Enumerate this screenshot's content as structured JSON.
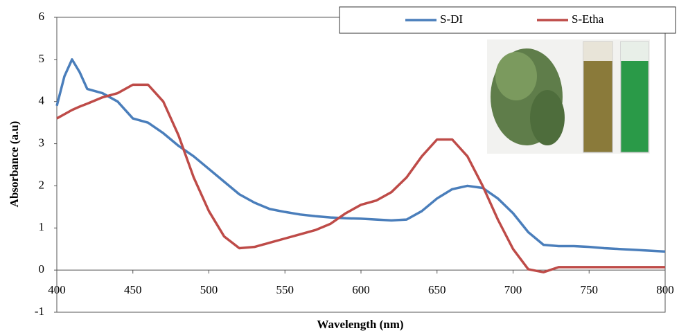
{
  "chart_data": {
    "type": "line",
    "x_label": "Wavelength (nm)",
    "y_label": "Absorbance (a.u)",
    "x": [
      400,
      405,
      410,
      415,
      420,
      430,
      440,
      450,
      460,
      470,
      480,
      490,
      500,
      510,
      520,
      530,
      540,
      550,
      560,
      570,
      580,
      590,
      600,
      610,
      620,
      630,
      640,
      650,
      660,
      670,
      680,
      690,
      700,
      710,
      720,
      730,
      740,
      750,
      760,
      770,
      780,
      790,
      800
    ],
    "series": [
      {
        "name": "S-DI",
        "color": "#4a7ebb",
        "values": [
          3.9,
          4.6,
          5.0,
          4.7,
          4.3,
          4.2,
          4.0,
          3.6,
          3.5,
          3.25,
          2.95,
          2.7,
          2.4,
          2.1,
          1.8,
          1.6,
          1.45,
          1.38,
          1.32,
          1.28,
          1.25,
          1.23,
          1.22,
          1.2,
          1.18,
          1.2,
          1.4,
          1.7,
          1.92,
          2.0,
          1.95,
          1.7,
          1.35,
          0.9,
          0.6,
          0.57,
          0.57,
          0.55,
          0.52,
          0.5,
          0.48,
          0.46,
          0.44
        ]
      },
      {
        "name": "S-Etha",
        "color": "#be4b48",
        "values": [
          3.6,
          3.7,
          3.8,
          3.88,
          3.95,
          4.1,
          4.2,
          4.4,
          4.4,
          4.0,
          3.2,
          2.2,
          1.4,
          0.8,
          0.52,
          0.55,
          0.65,
          0.75,
          0.85,
          0.95,
          1.1,
          1.35,
          1.55,
          1.65,
          1.85,
          2.2,
          2.7,
          3.1,
          3.1,
          2.7,
          2.0,
          1.2,
          0.5,
          0.02,
          -0.05,
          0.07,
          0.07,
          0.07,
          0.07,
          0.07,
          0.07,
          0.07,
          0.07
        ]
      }
    ],
    "xlim": [
      400,
      800
    ],
    "xticks": [
      400,
      450,
      500,
      550,
      600,
      650,
      700,
      750,
      800
    ],
    "ylim": [
      -1,
      6
    ],
    "yticks": [
      -1,
      0,
      1,
      2,
      3,
      4,
      5,
      6
    ],
    "legend": "top-right",
    "grid": false
  }
}
